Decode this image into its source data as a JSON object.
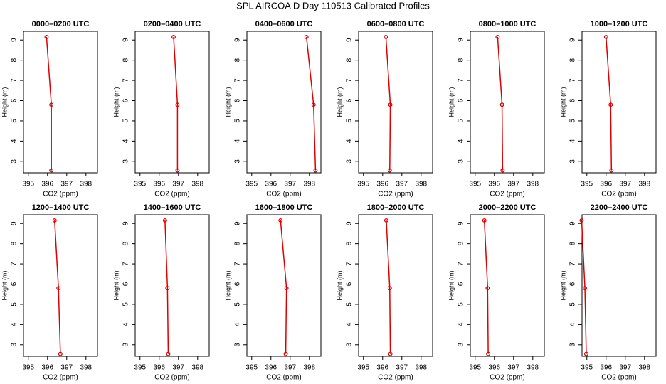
{
  "title": "SPL AIRCOA D  Day 110513  Calibrated Profiles",
  "chart_data": [
    {
      "type": "line",
      "title": "0000–0200 UTC",
      "xlabel": "CO2 (ppm)",
      "ylabel": "Height (m)",
      "xlim": [
        394.75,
        398.6
      ],
      "ylim": [
        2.43,
        9.43
      ],
      "xticks": [
        395,
        396,
        397,
        398
      ],
      "yticks": [
        3,
        4,
        5,
        6,
        7,
        8,
        9
      ],
      "color": "#dd0000",
      "x": [
        395.95,
        396.2,
        396.2
      ],
      "values": [
        9.15,
        5.8,
        2.55
      ]
    },
    {
      "type": "line",
      "title": "0200–0400 UTC",
      "xlabel": "CO2 (ppm)",
      "ylabel": "Height (m)",
      "xlim": [
        394.75,
        398.6
      ],
      "ylim": [
        2.43,
        9.43
      ],
      "xticks": [
        395,
        396,
        397,
        398
      ],
      "yticks": [
        3,
        4,
        5,
        6,
        7,
        8,
        9
      ],
      "color": "#dd0000",
      "x": [
        396.75,
        396.95,
        396.95
      ],
      "values": [
        9.15,
        5.8,
        2.55
      ]
    },
    {
      "type": "line",
      "title": "0400–0600 UTC",
      "xlabel": "CO2 (ppm)",
      "ylabel": "Height (m)",
      "xlim": [
        394.75,
        398.6
      ],
      "ylim": [
        2.43,
        9.43
      ],
      "xticks": [
        395,
        396,
        397,
        398
      ],
      "yticks": [
        3,
        4,
        5,
        6,
        7,
        8,
        9
      ],
      "color": "#dd0000",
      "x": [
        397.85,
        398.22,
        398.32
      ],
      "values": [
        9.15,
        5.8,
        2.55
      ]
    },
    {
      "type": "line",
      "title": "0600–0800 UTC",
      "xlabel": "CO2 (ppm)",
      "ylabel": "Height (m)",
      "xlim": [
        394.75,
        398.6
      ],
      "ylim": [
        2.43,
        9.43
      ],
      "xticks": [
        395,
        396,
        397,
        398
      ],
      "yticks": [
        3,
        4,
        5,
        6,
        7,
        8,
        9
      ],
      "color": "#dd0000",
      "x": [
        396.17,
        396.4,
        396.37
      ],
      "values": [
        9.15,
        5.8,
        2.55
      ]
    },
    {
      "type": "line",
      "title": "0800–1000 UTC",
      "xlabel": "CO2 (ppm)",
      "ylabel": "Height (m)",
      "xlim": [
        394.75,
        398.6
      ],
      "ylim": [
        2.43,
        9.43
      ],
      "xticks": [
        395,
        396,
        397,
        398
      ],
      "yticks": [
        3,
        4,
        5,
        6,
        7,
        8,
        9
      ],
      "color": "#dd0000",
      "x": [
        396.17,
        396.4,
        396.43
      ],
      "values": [
        9.15,
        5.8,
        2.55
      ]
    },
    {
      "type": "line",
      "title": "1000–1200 UTC",
      "xlabel": "CO2 (ppm)",
      "ylabel": "Height (m)",
      "xlim": [
        394.75,
        398.6
      ],
      "ylim": [
        2.43,
        9.43
      ],
      "xticks": [
        395,
        396,
        397,
        398
      ],
      "yticks": [
        3,
        4,
        5,
        6,
        7,
        8,
        9
      ],
      "color": "#dd0000",
      "x": [
        396.0,
        396.24,
        396.28
      ],
      "values": [
        9.15,
        5.8,
        2.55
      ]
    },
    {
      "type": "line",
      "title": "1200–1400 UTC",
      "xlabel": "CO2 (ppm)",
      "ylabel": "Height (m)",
      "xlim": [
        394.75,
        398.6
      ],
      "ylim": [
        2.43,
        9.43
      ],
      "xticks": [
        395,
        396,
        397,
        398
      ],
      "yticks": [
        3,
        4,
        5,
        6,
        7,
        8,
        9
      ],
      "color": "#dd0000",
      "x": [
        396.37,
        396.57,
        396.67
      ],
      "values": [
        9.15,
        5.8,
        2.55
      ]
    },
    {
      "type": "line",
      "title": "1400–1600 UTC",
      "xlabel": "CO2 (ppm)",
      "ylabel": "Height (m)",
      "xlim": [
        394.75,
        398.6
      ],
      "ylim": [
        2.43,
        9.43
      ],
      "xticks": [
        395,
        396,
        397,
        398
      ],
      "yticks": [
        3,
        4,
        5,
        6,
        7,
        8,
        9
      ],
      "color": "#dd0000",
      "x": [
        396.3,
        396.43,
        396.47
      ],
      "values": [
        9.15,
        5.8,
        2.55
      ]
    },
    {
      "type": "line",
      "title": "1600–1800 UTC",
      "xlabel": "CO2 (ppm)",
      "ylabel": "Height (m)",
      "xlim": [
        394.75,
        398.6
      ],
      "ylim": [
        2.43,
        9.43
      ],
      "xticks": [
        395,
        396,
        397,
        398
      ],
      "yticks": [
        3,
        4,
        5,
        6,
        7,
        8,
        9
      ],
      "color": "#dd0000",
      "x": [
        396.5,
        396.81,
        396.77
      ],
      "values": [
        9.15,
        5.8,
        2.55
      ]
    },
    {
      "type": "line",
      "title": "1800–2000 UTC",
      "xlabel": "CO2 (ppm)",
      "ylabel": "Height (m)",
      "xlim": [
        394.75,
        398.6
      ],
      "ylim": [
        2.43,
        9.43
      ],
      "xticks": [
        395,
        396,
        397,
        398
      ],
      "yticks": [
        3,
        4,
        5,
        6,
        7,
        8,
        9
      ],
      "color": "#dd0000",
      "x": [
        396.19,
        396.37,
        396.4
      ],
      "values": [
        9.15,
        5.8,
        2.55
      ]
    },
    {
      "type": "line",
      "title": "2000–2200 UTC",
      "xlabel": "CO2 (ppm)",
      "ylabel": "Height (m)",
      "xlim": [
        394.75,
        398.6
      ],
      "ylim": [
        2.43,
        9.43
      ],
      "xticks": [
        395,
        396,
        397,
        398
      ],
      "yticks": [
        3,
        4,
        5,
        6,
        7,
        8,
        9
      ],
      "color": "#dd0000",
      "x": [
        395.48,
        395.65,
        395.68
      ],
      "values": [
        9.15,
        5.8,
        2.55
      ]
    },
    {
      "type": "line",
      "title": "2200–2400 UTC",
      "xlabel": "CO2 (ppm)",
      "ylabel": "Height (m)",
      "xlim": [
        394.75,
        398.6
      ],
      "ylim": [
        2.43,
        9.43
      ],
      "xticks": [
        395,
        396,
        397,
        398
      ],
      "yticks": [
        3,
        4,
        5,
        6,
        7,
        8,
        9
      ],
      "color": "#dd0000",
      "x": [
        394.73,
        394.9,
        394.97
      ],
      "values": [
        9.15,
        5.8,
        2.55
      ]
    }
  ]
}
